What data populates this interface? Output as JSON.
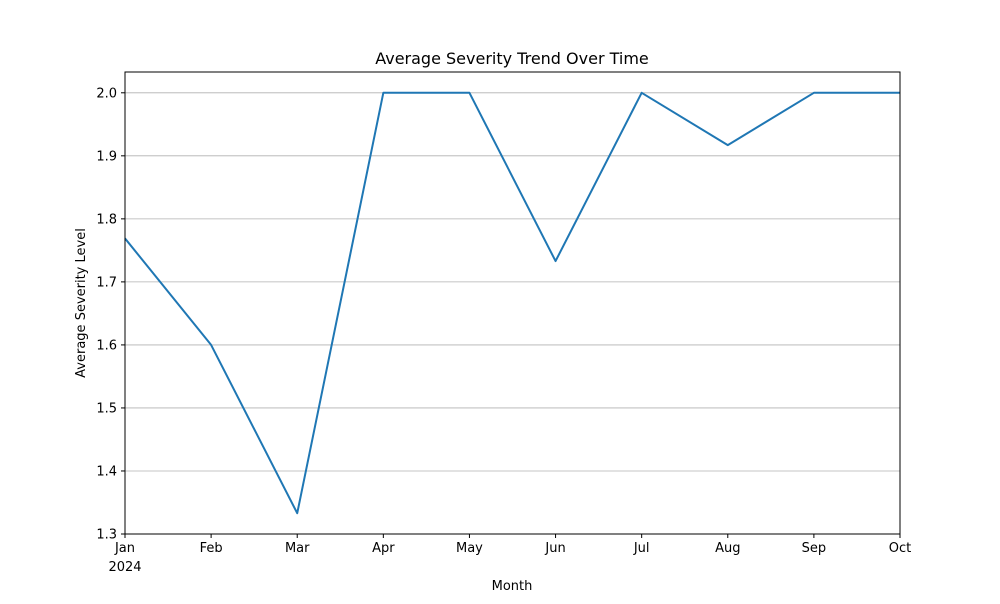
{
  "chart_data": {
    "type": "line",
    "title": "Average Severity Trend Over Time",
    "xlabel": "Month",
    "ylabel": "Average Severity Level",
    "categories": [
      "Jan",
      "Feb",
      "Mar",
      "Apr",
      "May",
      "Jun",
      "Jul",
      "Aug",
      "Sep",
      "Oct"
    ],
    "year_label": "2024",
    "x": [
      "2024-01",
      "2024-02",
      "2024-03",
      "2024-04",
      "2024-05",
      "2024-06",
      "2024-07",
      "2024-08",
      "2024-09",
      "2024-10"
    ],
    "series": [
      {
        "values": [
          1.769,
          1.6,
          1.333,
          2.0,
          2.0,
          1.733,
          2.0,
          1.917,
          2.0,
          2.0
        ]
      }
    ],
    "ylim": [
      1.3,
      2.033
    ],
    "yticks": [
      "1.3",
      "1.4",
      "1.5",
      "1.6",
      "1.7",
      "1.8",
      "1.9",
      "2.0"
    ],
    "grid": "horizontal",
    "line_color": "#1f77b4"
  }
}
